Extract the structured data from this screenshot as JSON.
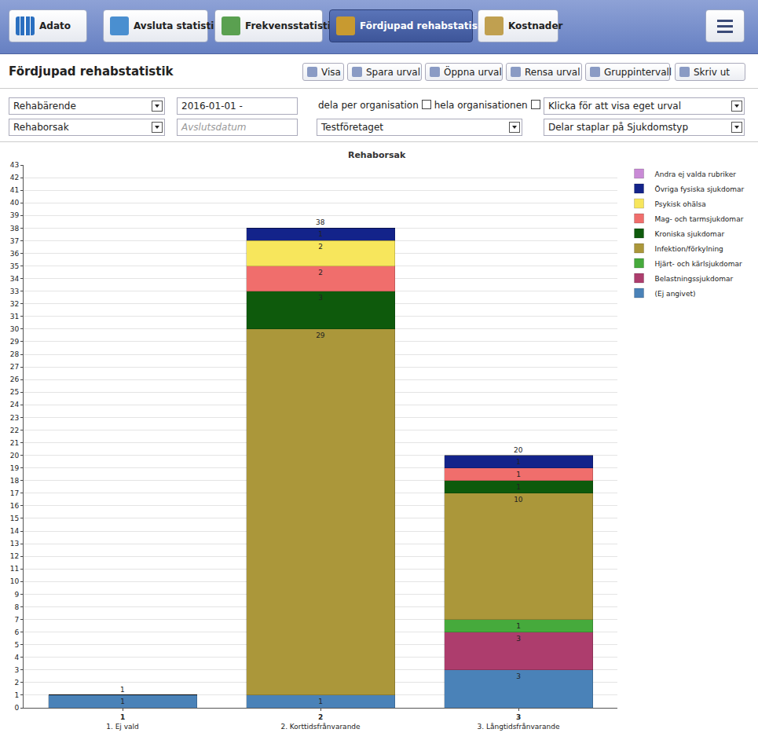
{
  "toolbar": {
    "brand": "Adato",
    "tabs": [
      "Avsluta statistik",
      "Frekvensstatistik",
      "Fördjupad rehabstatistik",
      "Kostnader"
    ],
    "active_tab": "Fördjupad rehabstatistik"
  },
  "header": {
    "title": "Fördjupad rehabstatistik",
    "buttons": [
      "Visa",
      "Spara urval",
      "Öppna urval",
      "Rensa urval",
      "Gruppintervall",
      "Skriv ut"
    ]
  },
  "filters": {
    "case_type": "Rehabärende",
    "start_date": "2016-01-01 -",
    "end_date_placeholder": "Avslutsdatum",
    "split_label": "dela per organisation",
    "whole_org_label": "hela organisationen",
    "custom_selection": "Klicka för att visa eget urval",
    "grouping": "Rehaborsak",
    "company": "Testföretaget",
    "split_bars": "Delar staplar på Sjukdomstyp"
  },
  "chart_data": {
    "type": "bar",
    "title": "Rehaborsak",
    "stacked": true,
    "data_labels": true,
    "grid": true,
    "legend": "top right",
    "categories": [
      "1",
      "2",
      "3"
    ],
    "category_names": [
      "1. Ej vald",
      "2. Korttidsfrånvarande",
      "3. Långtidsfrånvarande"
    ],
    "totals": [
      1,
      38,
      20
    ],
    "ylim": [
      0,
      43
    ],
    "yticks": [
      0,
      1,
      2,
      3,
      4,
      5,
      6,
      7,
      8,
      9,
      10,
      11,
      12,
      13,
      14,
      15,
      16,
      17,
      18,
      19,
      20,
      21,
      22,
      23,
      24,
      25,
      26,
      27,
      28,
      29,
      30,
      31,
      32,
      33,
      34,
      35,
      36,
      37,
      38,
      39,
      40,
      41,
      42,
      43
    ],
    "series": [
      {
        "name": "(Ej angivet)",
        "color": "#4a82b8",
        "values": [
          1,
          1,
          3
        ]
      },
      {
        "name": "Belastningssjukdomar",
        "color": "#ad3d6d",
        "values": [
          0,
          0,
          3
        ]
      },
      {
        "name": "Hjärt- och kärlsjukdomar",
        "color": "#46aa3c",
        "values": [
          0,
          0,
          1
        ]
      },
      {
        "name": "Infektion/förkylning",
        "color": "#ab973a",
        "values": [
          0,
          29,
          10
        ]
      },
      {
        "name": "Kroniska sjukdomar",
        "color": "#0e5a0c",
        "values": [
          0,
          3,
          1
        ]
      },
      {
        "name": "Mag- och tarmsjukdomar",
        "color": "#f06e6c",
        "values": [
          0,
          2,
          1
        ]
      },
      {
        "name": "Psykisk ohälsa",
        "color": "#f7e65c",
        "values": [
          0,
          2,
          0
        ]
      },
      {
        "name": "Övriga fysiska sjukdomar",
        "color": "#13238a",
        "values": [
          0,
          1,
          1
        ]
      },
      {
        "name": "Andra ej valda rubriker",
        "color": "#c98ad6",
        "values": [
          0,
          0,
          0
        ]
      }
    ]
  }
}
